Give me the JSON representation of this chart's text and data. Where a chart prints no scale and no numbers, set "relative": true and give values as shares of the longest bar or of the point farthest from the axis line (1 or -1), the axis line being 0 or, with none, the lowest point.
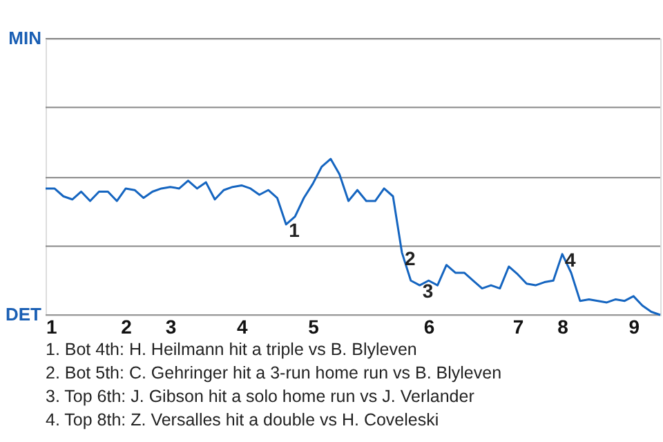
{
  "chart_data": {
    "type": "line",
    "relative": true,
    "categories": [
      "1",
      null,
      null,
      null,
      null,
      null,
      null,
      null,
      null,
      "2",
      null,
      null,
      null,
      null,
      "3",
      null,
      null,
      null,
      null,
      null,
      null,
      null,
      "4",
      null,
      null,
      null,
      null,
      null,
      null,
      null,
      "5",
      null,
      null,
      null,
      null,
      null,
      null,
      null,
      null,
      null,
      null,
      null,
      null,
      "6",
      null,
      null,
      null,
      null,
      null,
      null,
      null,
      null,
      null,
      "7",
      null,
      null,
      null,
      null,
      "8",
      null,
      null,
      null,
      null,
      null,
      null,
      null,
      "9",
      null,
      null,
      null
    ],
    "series": [
      {
        "color": "#1565c0",
        "values": [
          0.81,
          0.81,
          0.76,
          0.74,
          0.79,
          0.73,
          0.79,
          0.79,
          0.73,
          0.81,
          0.8,
          0.75,
          0.79,
          0.81,
          0.82,
          0.81,
          0.86,
          0.81,
          0.85,
          0.74,
          0.8,
          0.82,
          0.83,
          0.81,
          0.77,
          0.8,
          0.75,
          0.58,
          0.63,
          0.75,
          0.84,
          0.95,
          1,
          0.9,
          0.73,
          0.8,
          0.73,
          0.73,
          0.81,
          0.76,
          0.4,
          0.22,
          0.19,
          0.22,
          0.19,
          0.32,
          0.27,
          0.27,
          0.22,
          0.17,
          0.19,
          0.17,
          0.31,
          0.26,
          0.2,
          0.19,
          0.21,
          0.22,
          0.39,
          0.27,
          0.09,
          0.1,
          0.09,
          0.08,
          0.1,
          0.09,
          0.12,
          0.06,
          0.02,
          0
        ]
      }
    ],
    "ref_lines": [
      {
        "axis": "y",
        "value": 0,
        "label": "DET",
        "color": "#999999"
      },
      {
        "axis": "y",
        "value": 0.44,
        "color": "#888888"
      },
      {
        "axis": "y",
        "value": 0.88,
        "color": "#888888"
      },
      {
        "axis": "y",
        "value": 1.33,
        "color": "#888888"
      },
      {
        "axis": "y",
        "value": 1.77,
        "label": "MIN",
        "color": "#888888"
      }
    ],
    "annotations": [
      {
        "text": "1",
        "y": 0.58
      },
      {
        "text": "2",
        "y": 0.4
      },
      {
        "text": "3",
        "y": 0.19
      },
      {
        "text": "4",
        "y": 0.39
      },
      "1. Bot 4th: H. Heilmann hit a triple vs B. Blyleven",
      "2. Bot 5th: C. Gehringer hit a 3-run home run vs B. Blyleven",
      "3. Top 6th: J. Gibson hit a solo home run vs J. Verlander",
      "4. Top 8th: Z. Versalles hit a double vs H. Coveleski"
    ]
  }
}
